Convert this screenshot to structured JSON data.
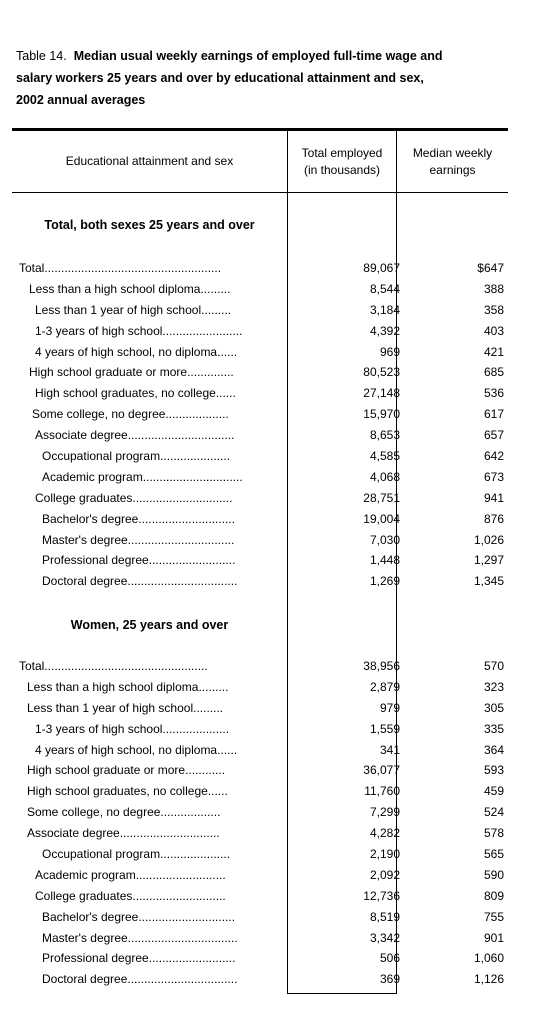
{
  "title": {
    "label": "Table 14.",
    "text_line1": "Median usual weekly earnings of employed full-time wage and",
    "text_line2": "salary workers 25 years and over by educational attainment and sex,",
    "text_line3": "2002 annual averages"
  },
  "headers": {
    "col_a": "Educational attainment and sex",
    "col_b_line1": "Total employed",
    "col_b_line2": "(in thousands)",
    "col_c_line1": "Median weekly",
    "col_c_line2": "earnings"
  },
  "sections": [
    {
      "title": "Total, both sexes 25 years and over",
      "rows": [
        {
          "label": "Total.....................................................",
          "employed": "89,067",
          "earnings": "$647"
        },
        {
          "label": "Less than a high school diploma.........",
          "employed": "8,544",
          "earnings": "388"
        },
        {
          "label": "Less than 1 year of high school.........",
          "employed": "3,184",
          "earnings": "358"
        },
        {
          "label": "1-3 years of high school........................",
          "employed": "4,392",
          "earnings": "403"
        },
        {
          "label": "4 years of high school, no diploma......",
          "employed": "969",
          "earnings": "421"
        },
        {
          "label": "High school graduate or more..............",
          "employed": "80,523",
          "earnings": "685"
        },
        {
          "label": "High school graduates, no college......",
          "employed": "27,148",
          "earnings": "536"
        },
        {
          "label": "Some college, no degree...................",
          "employed": "15,970",
          "earnings": "617"
        },
        {
          "label": "Associate degree................................",
          "employed": "8,653",
          "earnings": "657"
        },
        {
          "label": "Occupational program.....................",
          "employed": "4,585",
          "earnings": "642"
        },
        {
          "label": "Academic program..............................",
          "employed": "4,068",
          "earnings": "673"
        },
        {
          "label": "College graduates..............................",
          "employed": "28,751",
          "earnings": "941"
        },
        {
          "label": "Bachelor's degree.............................",
          "employed": "19,004",
          "earnings": "876"
        },
        {
          "label": "Master's degree................................",
          "employed": "7,030",
          "earnings": "1,026"
        },
        {
          "label": "Professional degree..........................",
          "employed": "1,448",
          "earnings": "1,297"
        },
        {
          "label": "Doctoral degree.................................",
          "employed": "1,269",
          "earnings": "1,345"
        }
      ]
    },
    {
      "title": "Women, 25 years and over",
      "rows": [
        {
          "label": "Total.................................................",
          "employed": "38,956",
          "earnings": "570"
        },
        {
          "label": "Less than a high school diploma.........",
          "employed": "2,879",
          "earnings": "323"
        },
        {
          "label": "Less than 1 year of high school.........",
          "employed": "979",
          "earnings": "305"
        },
        {
          "label": "1-3 years of high school....................",
          "employed": "1,559",
          "earnings": "335"
        },
        {
          "label": "4 years of high school, no diploma......",
          "employed": "341",
          "earnings": "364"
        },
        {
          "label": "High school graduate or more............",
          "employed": "36,077",
          "earnings": "593"
        },
        {
          "label": "High school graduates, no college......",
          "employed": "11,760",
          "earnings": "459"
        },
        {
          "label": "Some college, no degree..................",
          "employed": "7,299",
          "earnings": "524"
        },
        {
          "label": "Associate degree..............................",
          "employed": "4,282",
          "earnings": "578"
        },
        {
          "label": "Occupational program.....................",
          "employed": "2,190",
          "earnings": "565"
        },
        {
          "label": "Academic program...........................",
          "employed": "2,092",
          "earnings": "590"
        },
        {
          "label": "College graduates............................",
          "employed": "12,736",
          "earnings": "809"
        },
        {
          "label": "Bachelor's degree.............................",
          "employed": "8,519",
          "earnings": "755"
        },
        {
          "label": "Master's degree.................................",
          "employed": "3,342",
          "earnings": "901"
        },
        {
          "label": "Professional degree..........................",
          "employed": "506",
          "earnings": "1,060"
        },
        {
          "label": "Doctoral degree.................................",
          "employed": "369",
          "earnings": "1,126"
        }
      ]
    }
  ]
}
